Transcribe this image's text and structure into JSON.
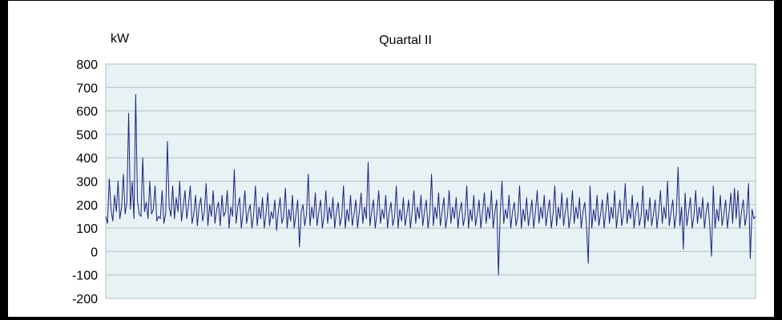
{
  "chart_data": {
    "type": "line",
    "title": "Quartal II",
    "ylabel": "kW",
    "xlabel": "",
    "ylim": [
      -200,
      800
    ],
    "yticks": [
      800,
      700,
      600,
      500,
      400,
      300,
      200,
      100,
      0,
      -100,
      -200
    ],
    "grid": true,
    "legend": "none",
    "series": [
      {
        "values": [
          150,
          120,
          310,
          180,
          130,
          240,
          170,
          300,
          140,
          190,
          330,
          160,
          210,
          590,
          180,
          300,
          140,
          670,
          220,
          160,
          150,
          400,
          170,
          210,
          140,
          300,
          160,
          180,
          280,
          130,
          150,
          140,
          260,
          120,
          160,
          470,
          190,
          150,
          280,
          140,
          230,
          170,
          300,
          130,
          190,
          260,
          140,
          200,
          280,
          120,
          160,
          240,
          110,
          190,
          230,
          130,
          170,
          290,
          110,
          200,
          150,
          260,
          120,
          180,
          210,
          110,
          240,
          150,
          170,
          260,
          100,
          190,
          150,
          350,
          120,
          190,
          230,
          100,
          170,
          260,
          120,
          170,
          200,
          100,
          160,
          280,
          110,
          190,
          140,
          230,
          100,
          160,
          250,
          110,
          170,
          140,
          220,
          90,
          170,
          230,
          120,
          150,
          270,
          100,
          180,
          130,
          240,
          100,
          160,
          220,
          20,
          170,
          200,
          110,
          160,
          330,
          110,
          190,
          140,
          250,
          110,
          170,
          220,
          100,
          150,
          260,
          120,
          190,
          140,
          230,
          100,
          170,
          210,
          110,
          150,
          280,
          100,
          180,
          130,
          240,
          110,
          160,
          220,
          100,
          170,
          250,
          120,
          190,
          140,
          380,
          110,
          170,
          220,
          100,
          160,
          260,
          120,
          180,
          140,
          240,
          100,
          170,
          210,
          110,
          150,
          280,
          100,
          180,
          130,
          230,
          110,
          160,
          220,
          100,
          170,
          260,
          120,
          190,
          140,
          240,
          110,
          170,
          220,
          100,
          160,
          330,
          110,
          190,
          140,
          250,
          110,
          170,
          230,
          100,
          150,
          260,
          120,
          190,
          140,
          230,
          100,
          170,
          210,
          110,
          150,
          280,
          100,
          180,
          130,
          240,
          110,
          160,
          220,
          100,
          170,
          250,
          120,
          190,
          140,
          260,
          100,
          170,
          220,
          -100,
          160,
          300,
          120,
          180,
          140,
          240,
          100,
          170,
          210,
          110,
          150,
          280,
          100,
          180,
          130,
          230,
          110,
          160,
          220,
          100,
          170,
          260,
          120,
          190,
          140,
          240,
          110,
          170,
          220,
          100,
          160,
          280,
          110,
          190,
          140,
          250,
          110,
          170,
          230,
          100,
          150,
          260,
          120,
          190,
          140,
          230,
          100,
          170,
          210,
          110,
          -50,
          280,
          100,
          180,
          130,
          240,
          110,
          160,
          220,
          100,
          170,
          250,
          120,
          190,
          140,
          260,
          100,
          170,
          220,
          110,
          160,
          290,
          120,
          180,
          140,
          240,
          100,
          170,
          210,
          110,
          150,
          280,
          100,
          180,
          130,
          230,
          110,
          160,
          220,
          100,
          170,
          260,
          120,
          190,
          140,
          300,
          110,
          170,
          220,
          100,
          160,
          360,
          110,
          190,
          10,
          250,
          110,
          170,
          230,
          100,
          150,
          260,
          120,
          190,
          140,
          230,
          100,
          170,
          210,
          110,
          -20,
          280,
          100,
          180,
          130,
          240,
          110,
          160,
          220,
          100,
          170,
          250,
          120,
          270,
          140,
          260,
          100,
          170,
          220,
          110,
          160,
          290,
          -30,
          180,
          140,
          150
        ]
      }
    ]
  },
  "colors": {
    "plot_background": "#e6f2f4",
    "grid": "#b6bfc4",
    "series_line": "#1f2180",
    "frame": "#000000",
    "page_background": "#000000"
  }
}
